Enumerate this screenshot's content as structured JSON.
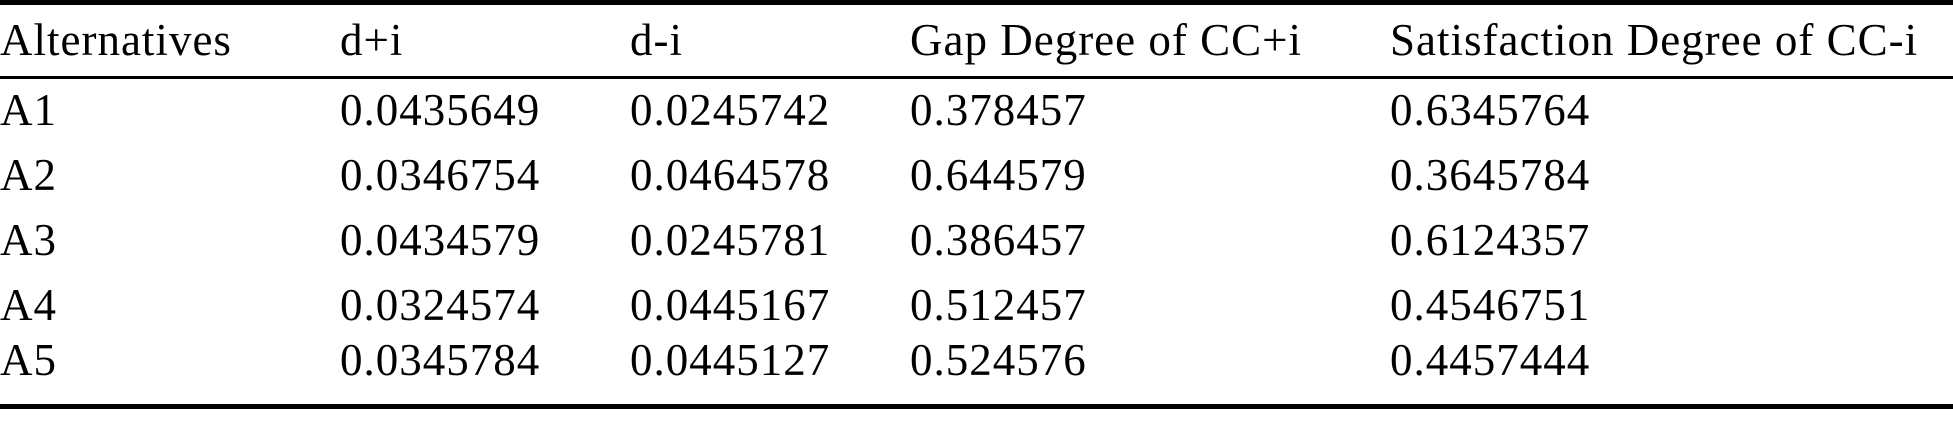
{
  "page": {
    "background_color": "#ffffff",
    "text_color": "#000000",
    "rule_color": "#000000"
  },
  "table": {
    "columns": [
      "Alternatives",
      "d+i",
      "d-i",
      "Gap Degree of CC+i",
      "Satisfaction Degree of CC-i"
    ],
    "rows": [
      [
        "A1",
        "0.0435649",
        "0.0245742",
        "0.378457",
        "0.6345764"
      ],
      [
        "A2",
        "0.0346754",
        "0.0464578",
        "0.644579",
        "0.3645784"
      ],
      [
        "A3",
        "0.0434579",
        "0.0245781",
        "0.386457",
        "0.6124357"
      ],
      [
        "A4",
        "0.0324574",
        "0.0445167",
        "0.512457",
        "0.4546751"
      ],
      [
        "A5",
        "0.0345784",
        "0.0445127",
        "0.524576",
        "0.4457444"
      ]
    ]
  },
  "chart_data": {
    "type": "table",
    "columns": [
      "Alternatives",
      "d+i",
      "d-i",
      "Gap Degree of CC+i",
      "Satisfaction Degree of CC-i"
    ],
    "rows": [
      [
        "A1",
        "0.0435649",
        "0.0245742",
        "0.378457",
        "0.6345764"
      ],
      [
        "A2",
        "0.0346754",
        "0.0464578",
        "0.644579",
        "0.3645784"
      ],
      [
        "A3",
        "0.0434579",
        "0.0245781",
        "0.386457",
        "0.6124357"
      ],
      [
        "A4",
        "0.0324574",
        "0.0445167",
        "0.512457",
        "0.4546751"
      ],
      [
        "A5",
        "0.0345784",
        "0.0445127",
        "0.524576",
        "0.4457444"
      ]
    ]
  }
}
